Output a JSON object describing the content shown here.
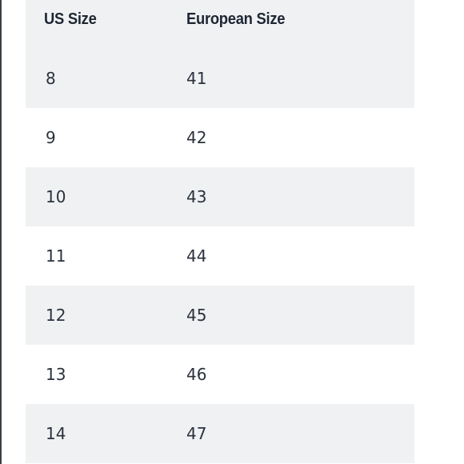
{
  "table": {
    "headers": {
      "us": "US Size",
      "eu": "European Size"
    },
    "rows": [
      {
        "us": "8",
        "eu": "41"
      },
      {
        "us": "9",
        "eu": "42"
      },
      {
        "us": "10",
        "eu": "43"
      },
      {
        "us": "11",
        "eu": "44"
      },
      {
        "us": "12",
        "eu": "45"
      },
      {
        "us": "13",
        "eu": "46"
      },
      {
        "us": "14",
        "eu": "47"
      }
    ]
  },
  "colors": {
    "shaded_row": "#f0f1f3",
    "plain_row": "#ffffff",
    "header_text": "#1d2633",
    "cell_text": "#2a323d"
  }
}
